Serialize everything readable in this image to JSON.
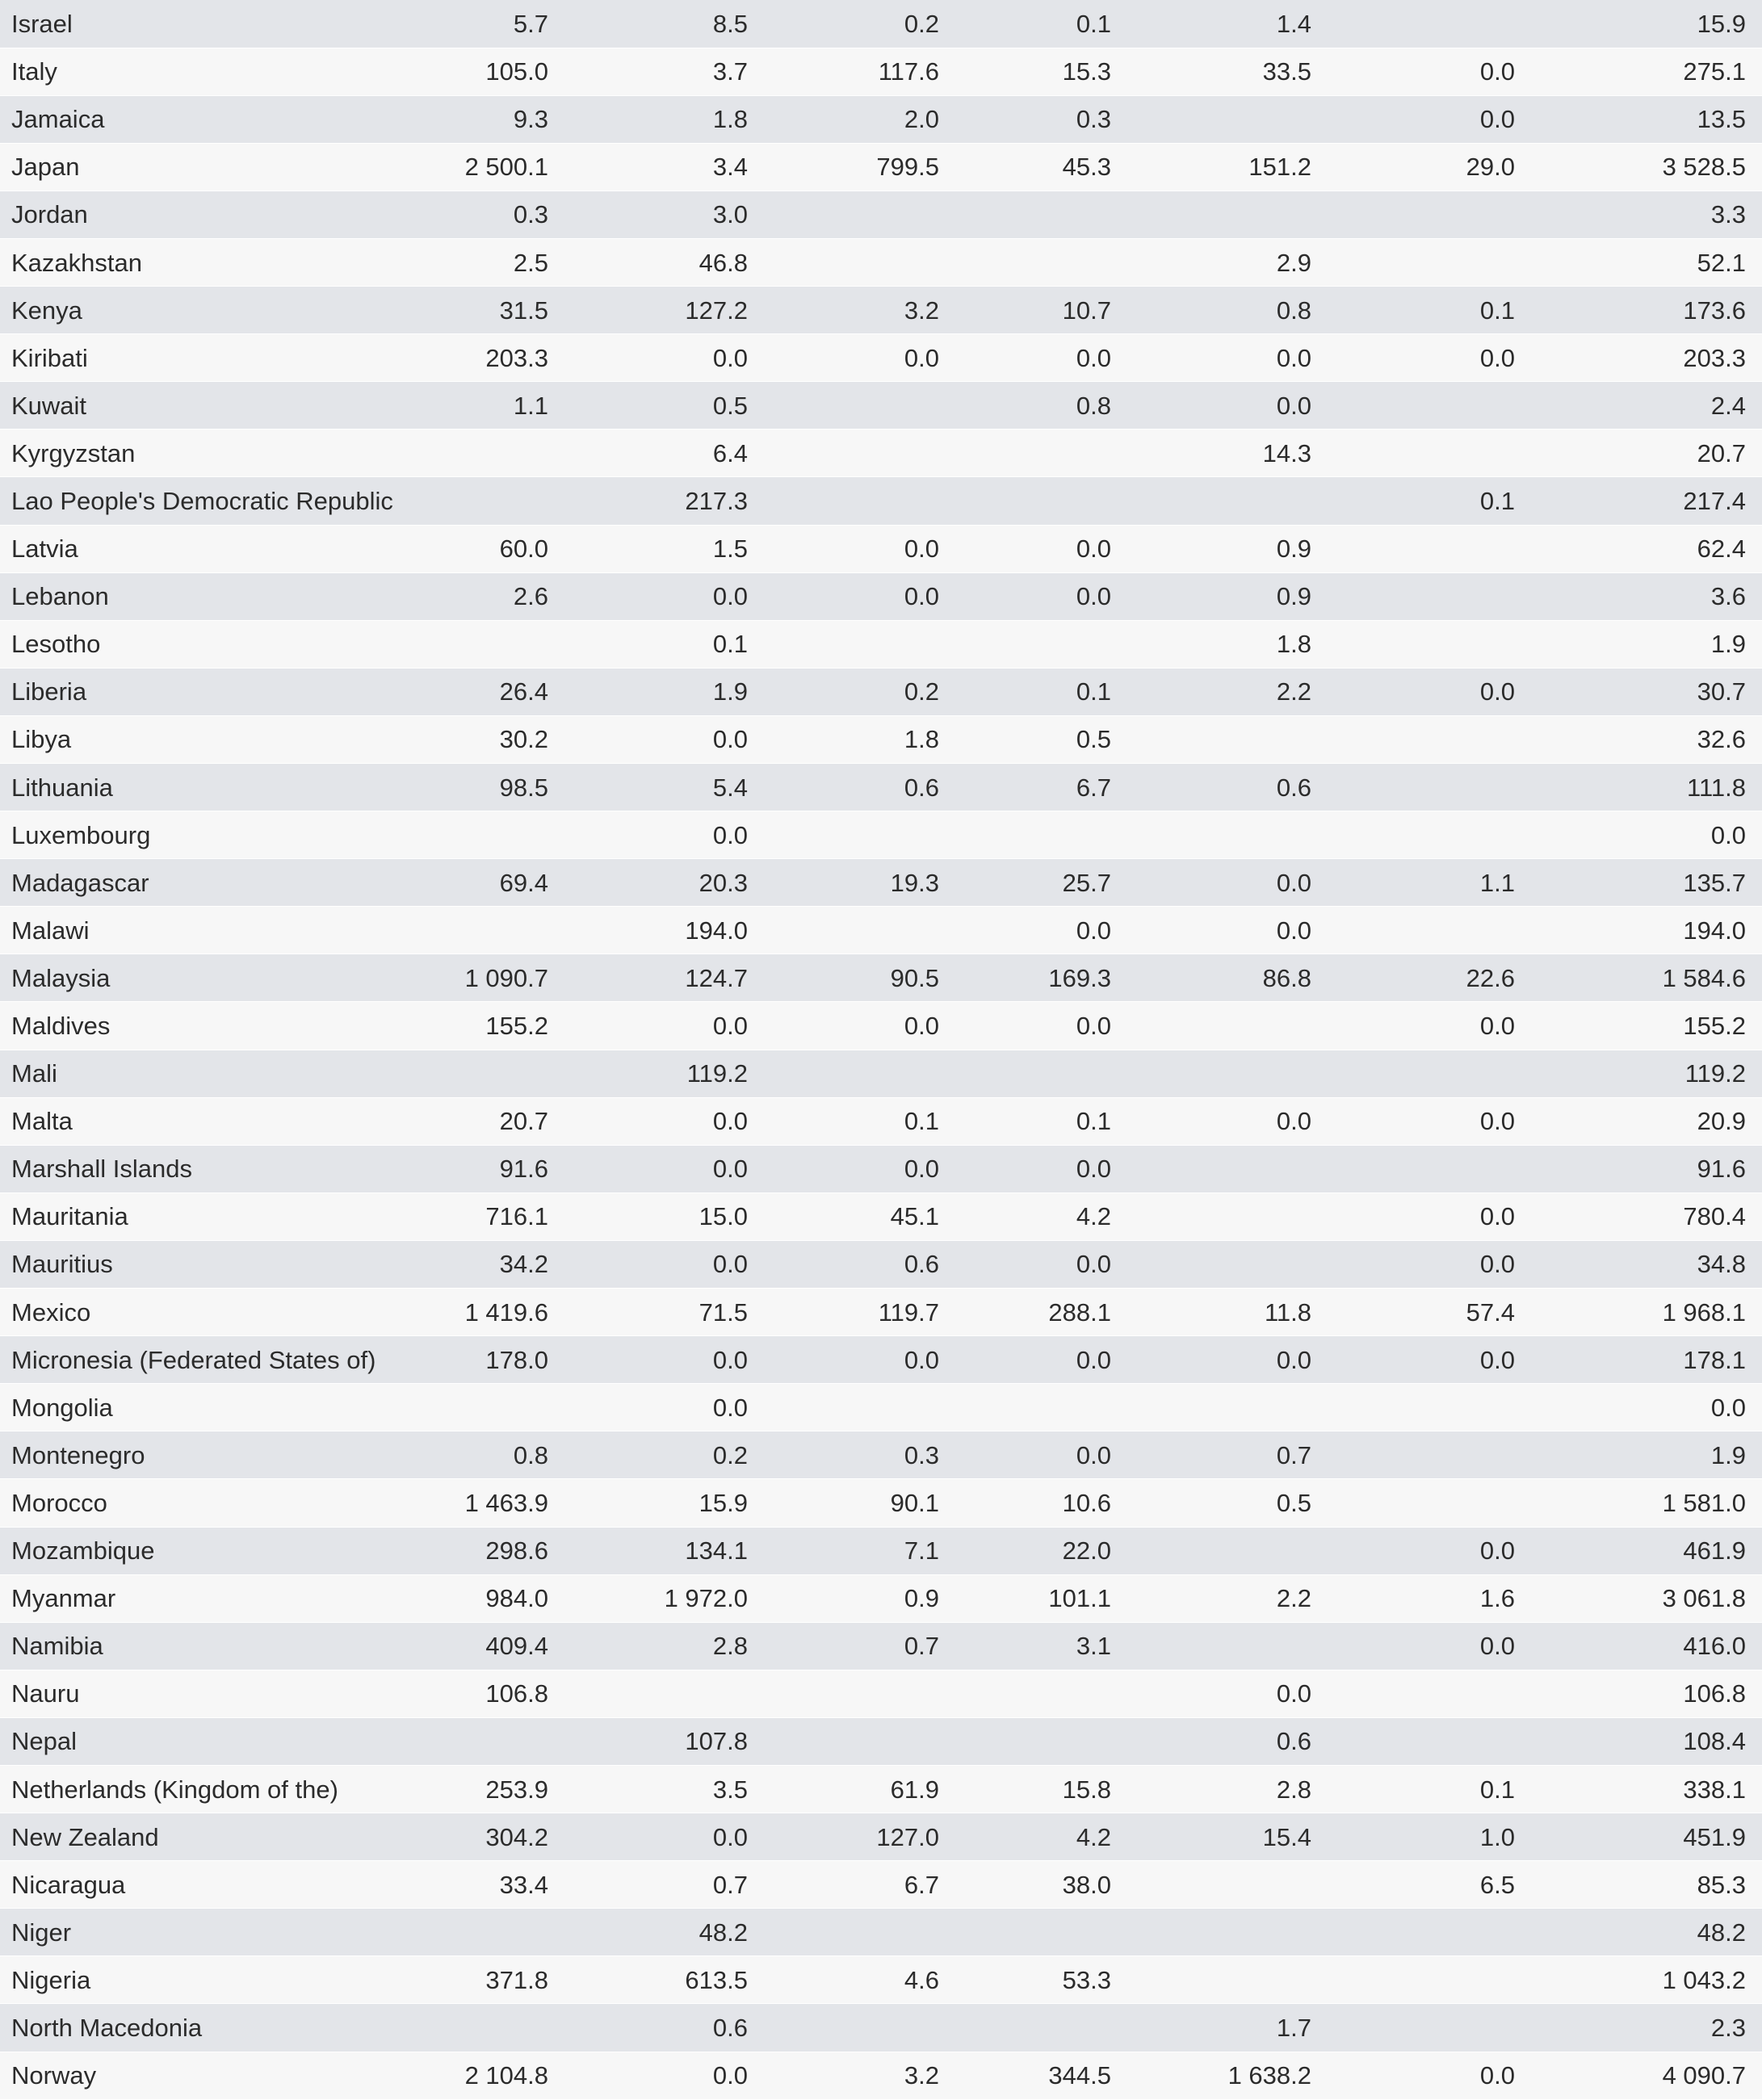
{
  "table": {
    "rows": [
      {
        "country": "Israel",
        "values": [
          "5.7",
          "8.5",
          "0.2",
          "0.1",
          "1.4",
          "",
          "15.9"
        ]
      },
      {
        "country": "Italy",
        "values": [
          "105.0",
          "3.7",
          "117.6",
          "15.3",
          "33.5",
          "0.0",
          "275.1"
        ]
      },
      {
        "country": "Jamaica",
        "values": [
          "9.3",
          "1.8",
          "2.0",
          "0.3",
          "",
          "0.0",
          "13.5"
        ]
      },
      {
        "country": "Japan",
        "values": [
          "2 500.1",
          "3.4",
          "799.5",
          "45.3",
          "151.2",
          "29.0",
          "3 528.5"
        ]
      },
      {
        "country": "Jordan",
        "values": [
          "0.3",
          "3.0",
          "",
          "",
          "",
          "",
          "3.3"
        ]
      },
      {
        "country": "Kazakhstan",
        "values": [
          "2.5",
          "46.8",
          "",
          "",
          "2.9",
          "",
          "52.1"
        ]
      },
      {
        "country": "Kenya",
        "values": [
          "31.5",
          "127.2",
          "3.2",
          "10.7",
          "0.8",
          "0.1",
          "173.6"
        ]
      },
      {
        "country": "Kiribati",
        "values": [
          "203.3",
          "0.0",
          "0.0",
          "0.0",
          "0.0",
          "0.0",
          "203.3"
        ]
      },
      {
        "country": "Kuwait",
        "values": [
          "1.1",
          "0.5",
          "",
          "0.8",
          "0.0",
          "",
          "2.4"
        ]
      },
      {
        "country": "Kyrgyzstan",
        "values": [
          "",
          "6.4",
          "",
          "",
          "14.3",
          "",
          "20.7"
        ]
      },
      {
        "country": "Lao People's Democratic Republic",
        "values": [
          "",
          "217.3",
          "",
          "",
          "",
          "0.1",
          "217.4"
        ]
      },
      {
        "country": "Latvia",
        "values": [
          "60.0",
          "1.5",
          "0.0",
          "0.0",
          "0.9",
          "",
          "62.4"
        ]
      },
      {
        "country": "Lebanon",
        "values": [
          "2.6",
          "0.0",
          "0.0",
          "0.0",
          "0.9",
          "",
          "3.6"
        ]
      },
      {
        "country": "Lesotho",
        "values": [
          "",
          "0.1",
          "",
          "",
          "1.8",
          "",
          "1.9"
        ]
      },
      {
        "country": "Liberia",
        "values": [
          "26.4",
          "1.9",
          "0.2",
          "0.1",
          "2.2",
          "0.0",
          "30.7"
        ]
      },
      {
        "country": "Libya",
        "values": [
          "30.2",
          "0.0",
          "1.8",
          "0.5",
          "",
          "",
          "32.6"
        ]
      },
      {
        "country": "Lithuania",
        "values": [
          "98.5",
          "5.4",
          "0.6",
          "6.7",
          "0.6",
          "",
          "111.8"
        ]
      },
      {
        "country": "Luxembourg",
        "values": [
          "",
          "0.0",
          "",
          "",
          "",
          "",
          "0.0"
        ]
      },
      {
        "country": "Madagascar",
        "values": [
          "69.4",
          "20.3",
          "19.3",
          "25.7",
          "0.0",
          "1.1",
          "135.7"
        ]
      },
      {
        "country": "Malawi",
        "values": [
          "",
          "194.0",
          "",
          "0.0",
          "0.0",
          "",
          "194.0"
        ]
      },
      {
        "country": "Malaysia",
        "values": [
          "1 090.7",
          "124.7",
          "90.5",
          "169.3",
          "86.8",
          "22.6",
          "1 584.6"
        ]
      },
      {
        "country": "Maldives",
        "values": [
          "155.2",
          "0.0",
          "0.0",
          "0.0",
          "",
          "0.0",
          "155.2"
        ]
      },
      {
        "country": "Mali",
        "values": [
          "",
          "119.2",
          "",
          "",
          "",
          "",
          "119.2"
        ]
      },
      {
        "country": "Malta",
        "values": [
          "20.7",
          "0.0",
          "0.1",
          "0.1",
          "0.0",
          "0.0",
          "20.9"
        ]
      },
      {
        "country": "Marshall Islands",
        "values": [
          "91.6",
          "0.0",
          "0.0",
          "0.0",
          "",
          "",
          "91.6"
        ]
      },
      {
        "country": "Mauritania",
        "values": [
          "716.1",
          "15.0",
          "45.1",
          "4.2",
          "",
          "0.0",
          "780.4"
        ]
      },
      {
        "country": "Mauritius",
        "values": [
          "34.2",
          "0.0",
          "0.6",
          "0.0",
          "",
          "0.0",
          "34.8"
        ]
      },
      {
        "country": "Mexico",
        "values": [
          "1 419.6",
          "71.5",
          "119.7",
          "288.1",
          "11.8",
          "57.4",
          "1 968.1"
        ]
      },
      {
        "country": "Micronesia (Federated States of)",
        "values": [
          "178.0",
          "0.0",
          "0.0",
          "0.0",
          "0.0",
          "0.0",
          "178.1"
        ]
      },
      {
        "country": "Mongolia",
        "values": [
          "",
          "0.0",
          "",
          "",
          "",
          "",
          "0.0"
        ]
      },
      {
        "country": "Montenegro",
        "values": [
          "0.8",
          "0.2",
          "0.3",
          "0.0",
          "0.7",
          "",
          "1.9"
        ]
      },
      {
        "country": "Morocco",
        "values": [
          "1 463.9",
          "15.9",
          "90.1",
          "10.6",
          "0.5",
          "",
          "1 581.0"
        ]
      },
      {
        "country": "Mozambique",
        "values": [
          "298.6",
          "134.1",
          "7.1",
          "22.0",
          "",
          "0.0",
          "461.9"
        ]
      },
      {
        "country": "Myanmar",
        "values": [
          "984.0",
          "1 972.0",
          "0.9",
          "101.1",
          "2.2",
          "1.6",
          "3 061.8"
        ]
      },
      {
        "country": "Namibia",
        "values": [
          "409.4",
          "2.8",
          "0.7",
          "3.1",
          "",
          "0.0",
          "416.0"
        ]
      },
      {
        "country": "Nauru",
        "values": [
          "106.8",
          "",
          "",
          "",
          "0.0",
          "",
          "106.8"
        ]
      },
      {
        "country": "Nepal",
        "values": [
          "",
          "107.8",
          "",
          "",
          "0.6",
          "",
          "108.4"
        ]
      },
      {
        "country": "Netherlands (Kingdom of the)",
        "values": [
          "253.9",
          "3.5",
          "61.9",
          "15.8",
          "2.8",
          "0.1",
          "338.1"
        ]
      },
      {
        "country": "New Zealand",
        "values": [
          "304.2",
          "0.0",
          "127.0",
          "4.2",
          "15.4",
          "1.0",
          "451.9"
        ]
      },
      {
        "country": "Nicaragua",
        "values": [
          "33.4",
          "0.7",
          "6.7",
          "38.0",
          "",
          "6.5",
          "85.3"
        ]
      },
      {
        "country": "Niger",
        "values": [
          "",
          "48.2",
          "",
          "",
          "",
          "",
          "48.2"
        ]
      },
      {
        "country": "Nigeria",
        "values": [
          "371.8",
          "613.5",
          "4.6",
          "53.3",
          "",
          "",
          "1 043.2"
        ]
      },
      {
        "country": "North Macedonia",
        "values": [
          "",
          "0.6",
          "",
          "",
          "1.7",
          "",
          "2.3"
        ]
      },
      {
        "country": "Norway",
        "values": [
          "2 104.8",
          "0.0",
          "3.2",
          "344.5",
          "1 638.2",
          "0.0",
          "4 090.7"
        ]
      }
    ]
  }
}
